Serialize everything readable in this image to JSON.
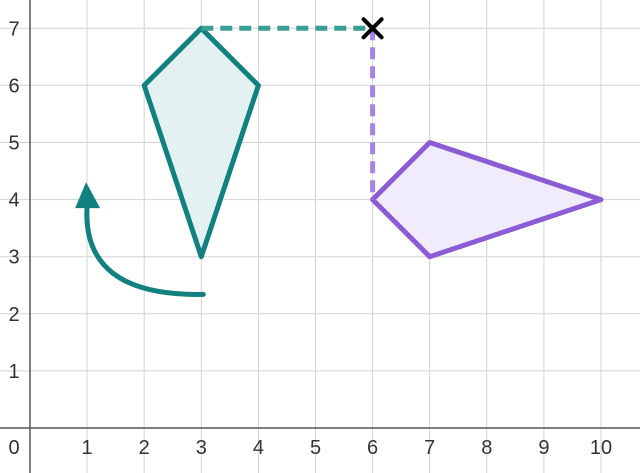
{
  "chart_data": {
    "type": "diagram",
    "x_ticks": [
      "0",
      "1",
      "2",
      "3",
      "4",
      "5",
      "6",
      "7",
      "8",
      "9",
      "10"
    ],
    "y_ticks": [
      "1",
      "2",
      "3",
      "4",
      "5",
      "6",
      "7"
    ],
    "xlim": [
      -0.5,
      10.7
    ],
    "ylim": [
      -0.8,
      7.5
    ],
    "grid": true,
    "shapes": [
      {
        "name": "teal-kite",
        "color": "#138080",
        "fill": "#e3f1f0",
        "points": [
          [
            3,
            7
          ],
          [
            4,
            6
          ],
          [
            3,
            3
          ],
          [
            2,
            6
          ]
        ]
      },
      {
        "name": "purple-kite",
        "color": "#8b5cd6",
        "fill": "#f1ecfb",
        "points": [
          [
            6,
            4
          ],
          [
            7,
            5
          ],
          [
            10,
            4
          ],
          [
            7,
            3
          ]
        ]
      }
    ],
    "center_of_rotation": {
      "point": [
        6,
        7
      ],
      "marker": "cross",
      "color": "#000000"
    },
    "dashed_guides": [
      {
        "color": "#3a9e96",
        "from": [
          3,
          7
        ],
        "to": [
          6,
          7
        ]
      },
      {
        "color": "#a684e6",
        "from": [
          6,
          7
        ],
        "to": [
          6,
          4
        ]
      }
    ],
    "rotation_arrow": {
      "color": "#138080",
      "center": [
        3,
        4.2
      ],
      "radius": 2.0,
      "direction": "anticlockwise",
      "start_angle_deg": 270,
      "end_angle_deg": 180
    }
  }
}
